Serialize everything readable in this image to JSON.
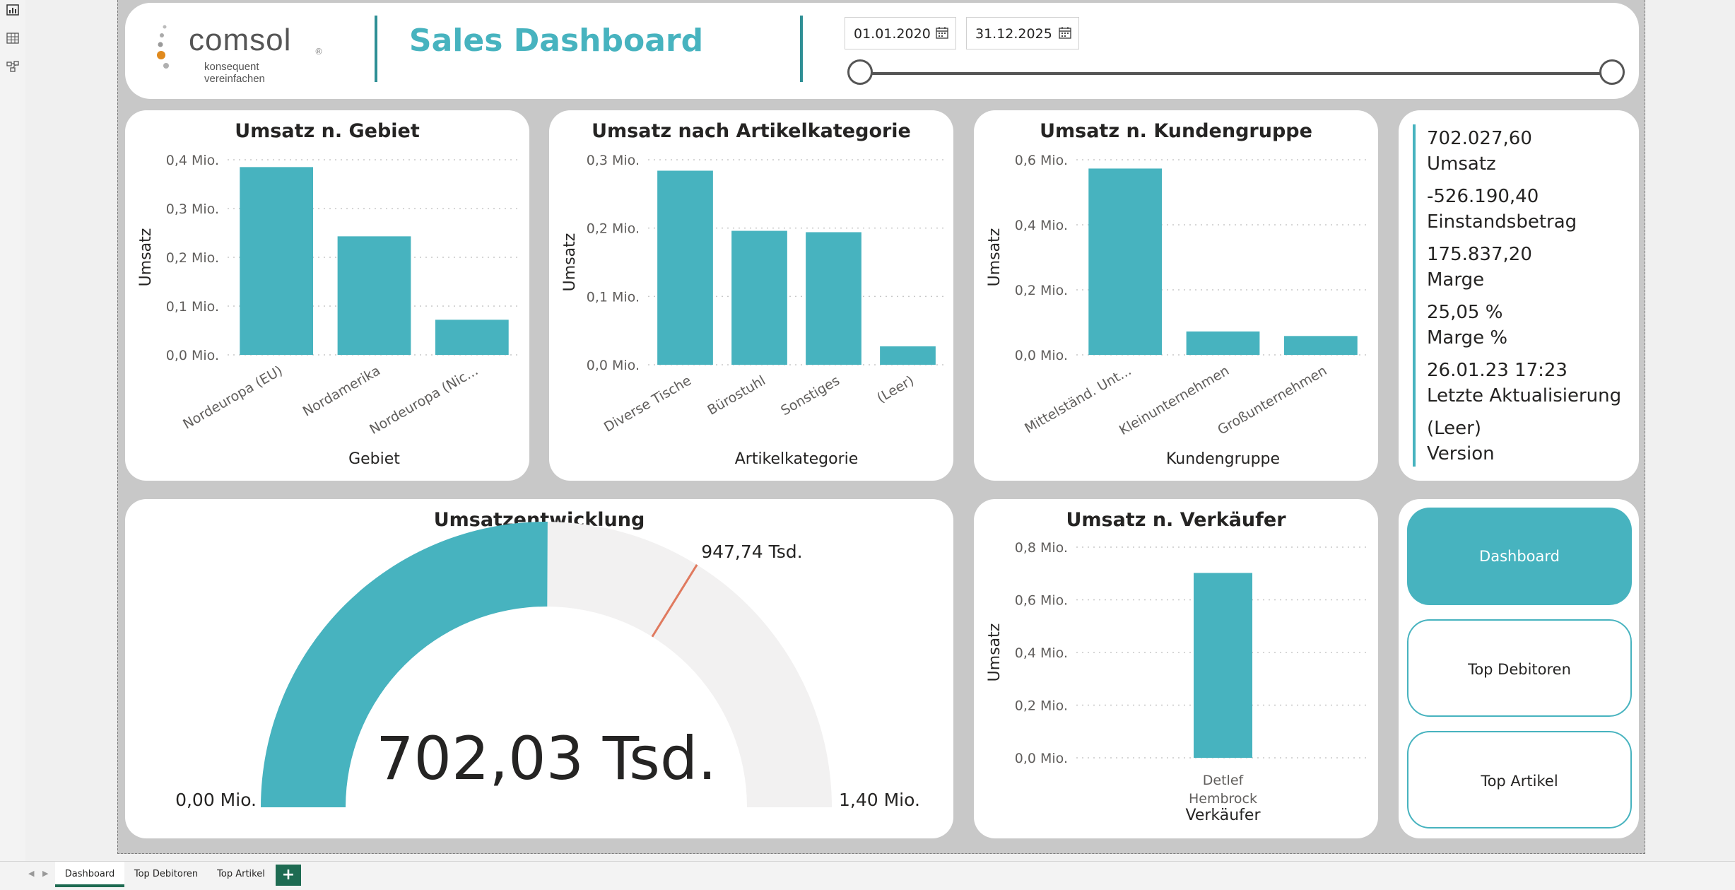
{
  "header": {
    "logo_name": "comsol",
    "logo_tagline": "konsequent vereinfachen",
    "logo_reg": "®",
    "title": "Sales Dashboard",
    "date_start": "01.01.2020",
    "date_end": "31.12.2025"
  },
  "left_toolbar": {
    "icons": [
      "report-view-icon",
      "table-view-icon",
      "model-view-icon"
    ]
  },
  "colors": {
    "accent": "#47b3bf",
    "gauge_bg": "#f2f1f1",
    "target": "#e07a5f",
    "tab_green": "#1e6b52"
  },
  "chart_data": [
    {
      "type": "bar",
      "title": "Umsatz n. Gebiet",
      "xlabel": "Gebiet",
      "ylabel": "Umsatz",
      "categories": [
        "Nordeuropa (EU)",
        "Nordamerika",
        "Nordeuropa (Nic..."
      ],
      "values": [
        0.385,
        0.243,
        0.072
      ],
      "ylim": [
        0,
        0.4
      ],
      "yticks": [
        0,
        0.1,
        0.2,
        0.3,
        0.4
      ],
      "yticklabels": [
        "0,0 Mio.",
        "0,1 Mio.",
        "0,2 Mio.",
        "0,3 Mio.",
        "0,4 Mio."
      ],
      "grid": true
    },
    {
      "type": "bar",
      "title": "Umsatz nach Artikelkategorie",
      "xlabel": "Artikelkategorie",
      "ylabel": "Umsatz",
      "categories": [
        "Diverse Tische",
        "Bürostuhl",
        "Sonstiges",
        "(Leer)"
      ],
      "values": [
        0.284,
        0.196,
        0.194,
        0.027
      ],
      "ylim": [
        0,
        0.3
      ],
      "yticks": [
        0,
        0.1,
        0.2,
        0.3
      ],
      "yticklabels": [
        "0,0 Mio.",
        "0,1 Mio.",
        "0,2 Mio.",
        "0,3 Mio."
      ],
      "grid": true
    },
    {
      "type": "bar",
      "title": "Umsatz n. Kundengruppe",
      "xlabel": "Kundengruppe",
      "ylabel": "Umsatz",
      "categories": [
        "Mittelständ. Unt...",
        "Kleinunternehmen",
        "Großunternehmen"
      ],
      "values": [
        0.573,
        0.072,
        0.058
      ],
      "ylim": [
        0,
        0.6
      ],
      "yticks": [
        0,
        0.2,
        0.4,
        0.6
      ],
      "yticklabels": [
        "0,0 Mio.",
        "0,2 Mio.",
        "0,4 Mio.",
        "0,6 Mio."
      ],
      "grid": true
    },
    {
      "type": "bar",
      "title": "Umsatz n. Verkäufer",
      "xlabel": "Verkäufer",
      "ylabel": "Umsatz",
      "categories": [
        "Detlef Hembrock"
      ],
      "values": [
        0.702
      ],
      "ylim": [
        0,
        0.8
      ],
      "yticks": [
        0,
        0.2,
        0.4,
        0.6,
        0.8
      ],
      "yticklabels": [
        "0,0 Mio.",
        "0,2 Mio.",
        "0,4 Mio.",
        "0,6 Mio.",
        "0,8 Mio."
      ],
      "grid": true
    },
    {
      "type": "gauge",
      "title": "Umsatzentwicklung",
      "min": 0,
      "max": 1.4,
      "value": 0.70203,
      "target": 0.94774,
      "value_label": "702,03 Tsd.",
      "min_label": "0,00 Mio.",
      "max_label": "1,40 Mio.",
      "target_label": "947,74 Tsd."
    }
  ],
  "kpis": [
    {
      "value": "702.027,60",
      "label": "Umsatz"
    },
    {
      "value": "-526.190,40",
      "label": "Einstandsbetrag"
    },
    {
      "value": "175.837,20",
      "label": "Marge"
    },
    {
      "value": "25,05 %",
      "label": "Marge %"
    },
    {
      "value": "26.01.23 17:23",
      "label": "Letzte Aktualisierung"
    },
    {
      "value": "(Leer)",
      "label": "Version"
    }
  ],
  "nav": {
    "buttons": [
      "Dashboard",
      "Top Debitoren",
      "Top Artikel"
    ]
  },
  "tabs": {
    "items": [
      "Dashboard",
      "Top Debitoren",
      "Top Artikel"
    ],
    "add": "+"
  }
}
